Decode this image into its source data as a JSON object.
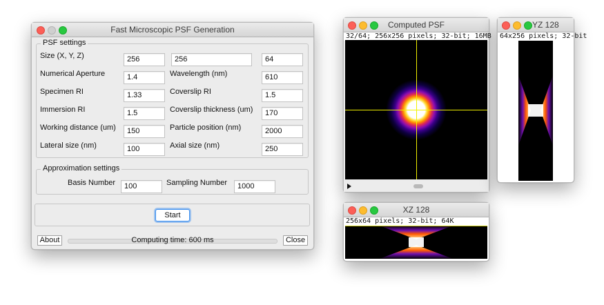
{
  "psf_window": {
    "title": "Fast Microscopic PSF Generation",
    "psf_group_title": "PSF settings",
    "size_label": "Size (X, Y, Z)",
    "size_x": "256",
    "size_y": "256",
    "size_z": "64",
    "na_label": "Numerical Aperture",
    "na_value": "1.4",
    "wavelength_label": "Wavelength (nm)",
    "wavelength_value": "610",
    "specimen_ri_label": "Specimen RI",
    "specimen_ri_value": "1.33",
    "coverslip_ri_label": "Coverslip RI",
    "coverslip_ri_value": "1.5",
    "immersion_ri_label": "Immersion RI",
    "immersion_ri_value": "1.5",
    "coverslip_thickness_label": "Coverslip thickness (um)",
    "coverslip_thickness_value": "170",
    "working_distance_label": "Working distance (um)",
    "working_distance_value": "150",
    "particle_position_label": "Particle position (nm)",
    "particle_position_value": "2000",
    "lateral_size_label": "Lateral size (nm)",
    "lateral_size_value": "100",
    "axial_size_label": "Axial size (nm)",
    "axial_size_value": "250",
    "approx_group_title": "Approximation settings",
    "basis_number_label": "Basis Number",
    "basis_number_value": "100",
    "sampling_number_label": "Sampling Number",
    "sampling_number_value": "1000",
    "start_label": "Start",
    "about_label": "About",
    "status_text": "Computing time: 600 ms",
    "close_label": "Close"
  },
  "computed_psf": {
    "title": "Computed PSF",
    "info": "32/64; 256x256 pixels; 32-bit; 16MB"
  },
  "yz_window": {
    "title": "YZ 128",
    "info": "64x256 pixels; 32-bit"
  },
  "xz_window": {
    "title": "XZ 128",
    "info": "256x64 pixels; 32-bit; 64K"
  },
  "colors": {
    "accent_focus": "#3b8ff0",
    "crosshair": "#f2f200",
    "image_background": "#000000"
  },
  "icons": {
    "play": "play-icon",
    "scroll_thumb": "scroll-thumb"
  }
}
